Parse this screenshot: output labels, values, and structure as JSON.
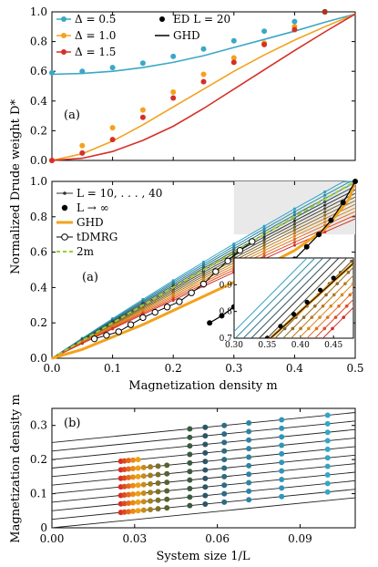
{
  "figure": {
    "ylabel_shared": "Normalized Drude weight D*",
    "xlabel_top": "Magnetization density m",
    "xlabel_bottom": "System size 1/L",
    "ylabel_bottom": "Magnetization density m"
  },
  "chart_data": [
    {
      "panel": "top",
      "type": "scatter",
      "panel_label": "(a)",
      "xlim": [
        0,
        0.5
      ],
      "ylim": [
        0,
        1.0
      ],
      "yticks": [
        "0.0",
        "0.2",
        "0.4",
        "0.6",
        "0.8",
        "1.0"
      ],
      "legend": [
        "Δ = 0.5",
        "Δ = 1.0",
        "Δ = 1.5",
        "ED L = 20",
        "GHD"
      ],
      "legend_placement": "top",
      "series": [
        {
          "name": "Δ = 0.5",
          "color": "#3ba7c6",
          "points": [
            [
              0.0,
              0.59
            ],
            [
              0.05,
              0.6
            ],
            [
              0.1,
              0.625
            ],
            [
              0.15,
              0.655
            ],
            [
              0.2,
              0.7
            ],
            [
              0.25,
              0.75
            ],
            [
              0.3,
              0.805
            ],
            [
              0.35,
              0.87
            ],
            [
              0.4,
              0.935
            ],
            [
              0.45,
              1.0
            ]
          ],
          "curve": [
            [
              0,
              0.58
            ],
            [
              0.05,
              0.585
            ],
            [
              0.1,
              0.6
            ],
            [
              0.15,
              0.625
            ],
            [
              0.2,
              0.66
            ],
            [
              0.25,
              0.705
            ],
            [
              0.3,
              0.76
            ],
            [
              0.35,
              0.815
            ],
            [
              0.4,
              0.87
            ],
            [
              0.45,
              0.93
            ],
            [
              0.5,
              0.985
            ]
          ]
        },
        {
          "name": "Δ = 1.0",
          "color": "#f3a21d",
          "points": [
            [
              0.0,
              0.0
            ],
            [
              0.05,
              0.1
            ],
            [
              0.1,
              0.22
            ],
            [
              0.15,
              0.34
            ],
            [
              0.2,
              0.46
            ],
            [
              0.25,
              0.58
            ],
            [
              0.3,
              0.69
            ],
            [
              0.35,
              0.79
            ],
            [
              0.4,
              0.9
            ],
            [
              0.45,
              1.0
            ]
          ],
          "curve": [
            [
              0,
              0
            ],
            [
              0.05,
              0.045
            ],
            [
              0.1,
              0.13
            ],
            [
              0.15,
              0.24
            ],
            [
              0.2,
              0.36
            ],
            [
              0.25,
              0.48
            ],
            [
              0.3,
              0.6
            ],
            [
              0.35,
              0.71
            ],
            [
              0.4,
              0.81
            ],
            [
              0.45,
              0.9
            ],
            [
              0.5,
              0.985
            ]
          ]
        },
        {
          "name": "Δ = 1.5",
          "color": "#d62f27",
          "points": [
            [
              0.0,
              0.0
            ],
            [
              0.05,
              0.05
            ],
            [
              0.1,
              0.14
            ],
            [
              0.15,
              0.29
            ],
            [
              0.2,
              0.42
            ],
            [
              0.25,
              0.53
            ],
            [
              0.3,
              0.66
            ],
            [
              0.35,
              0.78
            ],
            [
              0.4,
              0.88
            ],
            [
              0.45,
              1.0
            ]
          ],
          "curve": [
            [
              0,
              0
            ],
            [
              0.05,
              0.015
            ],
            [
              0.1,
              0.06
            ],
            [
              0.15,
              0.135
            ],
            [
              0.2,
              0.23
            ],
            [
              0.25,
              0.35
            ],
            [
              0.3,
              0.48
            ],
            [
              0.35,
              0.61
            ],
            [
              0.4,
              0.74
            ],
            [
              0.45,
              0.865
            ],
            [
              0.5,
              0.985
            ]
          ]
        }
      ]
    },
    {
      "panel": "middle",
      "type": "line",
      "panel_label": "(a)",
      "xlabel": "Magnetization density m",
      "xlim": [
        0,
        0.5
      ],
      "ylim": [
        0,
        1.0
      ],
      "xticks": [
        "0.0",
        "0.1",
        "0.2",
        "0.3",
        "0.4",
        "0.5"
      ],
      "yticks": [
        "0.0",
        "0.2",
        "0.4",
        "0.6",
        "0.8",
        "1.0"
      ],
      "legend": [
        "L = 10, . . . , 40",
        "L → ∞",
        "GHD",
        "tDMRG",
        "2m"
      ],
      "shaded_region": {
        "x": [
          0.3,
          0.5
        ],
        "y": [
          0.7,
          1.0
        ]
      },
      "L_inf_points": [
        [
          0.26,
          0.2
        ],
        [
          0.28,
          0.24
        ],
        [
          0.3,
          0.29
        ],
        [
          0.32,
          0.34
        ],
        [
          0.34,
          0.39
        ],
        [
          0.36,
          0.44
        ],
        [
          0.38,
          0.5
        ],
        [
          0.4,
          0.56
        ],
        [
          0.42,
          0.63
        ],
        [
          0.44,
          0.7
        ],
        [
          0.46,
          0.78
        ],
        [
          0.48,
          0.88
        ],
        [
          0.5,
          1.0
        ]
      ],
      "tDMRG_points": [
        [
          0.07,
          0.11
        ],
        [
          0.09,
          0.13
        ],
        [
          0.11,
          0.15
        ],
        [
          0.13,
          0.19
        ],
        [
          0.15,
          0.23
        ],
        [
          0.17,
          0.26
        ],
        [
          0.19,
          0.29
        ],
        [
          0.21,
          0.32
        ],
        [
          0.23,
          0.37
        ],
        [
          0.25,
          0.42
        ],
        [
          0.27,
          0.49
        ],
        [
          0.29,
          0.55
        ],
        [
          0.31,
          0.61
        ],
        [
          0.33,
          0.66
        ]
      ],
      "GHD_curve": [
        [
          0,
          0
        ],
        [
          0.05,
          0.05
        ],
        [
          0.1,
          0.12
        ],
        [
          0.15,
          0.19
        ],
        [
          0.2,
          0.27
        ],
        [
          0.25,
          0.35
        ],
        [
          0.3,
          0.43
        ],
        [
          0.35,
          0.52
        ],
        [
          0.4,
          0.61
        ],
        [
          0.45,
          0.73
        ],
        [
          0.49,
          0.9
        ],
        [
          0.5,
          1.0
        ]
      ],
      "two_m_line": [
        [
          0,
          0
        ],
        [
          0.5,
          1.0
        ]
      ],
      "inset": {
        "xlim": [
          0.3,
          0.5
        ],
        "ylim": [
          0.7,
          1.0
        ],
        "xticks": [
          "0.30",
          "0.35",
          "0.40",
          "0.45"
        ],
        "yticks": [
          "0.7",
          "0.8",
          "0.9"
        ]
      }
    },
    {
      "panel": "bottom",
      "type": "scatter",
      "panel_label": "(b)",
      "xlabel": "System size 1/L",
      "ylabel": "Magnetization density m",
      "xlim": [
        0,
        0.11
      ],
      "ylim": [
        0,
        0.35
      ],
      "xticks": [
        "0.00",
        "0.03",
        "0.06",
        "0.09"
      ],
      "yticks": [
        "0",
        "0.1",
        "0.2",
        "0.3"
      ],
      "columns_1_over_L": [
        0.025,
        0.0263,
        0.0278,
        0.0294,
        0.03125,
        0.0333,
        0.0357,
        0.0385,
        0.0417,
        0.05,
        0.0556,
        0.0625,
        0.0714,
        0.0833,
        0.1
      ],
      "line_intercepts": [
        0.0,
        0.025,
        0.05,
        0.075,
        0.1,
        0.125,
        0.15,
        0.175,
        0.2,
        0.225,
        0.25
      ],
      "line_slope": 0.8
    }
  ]
}
